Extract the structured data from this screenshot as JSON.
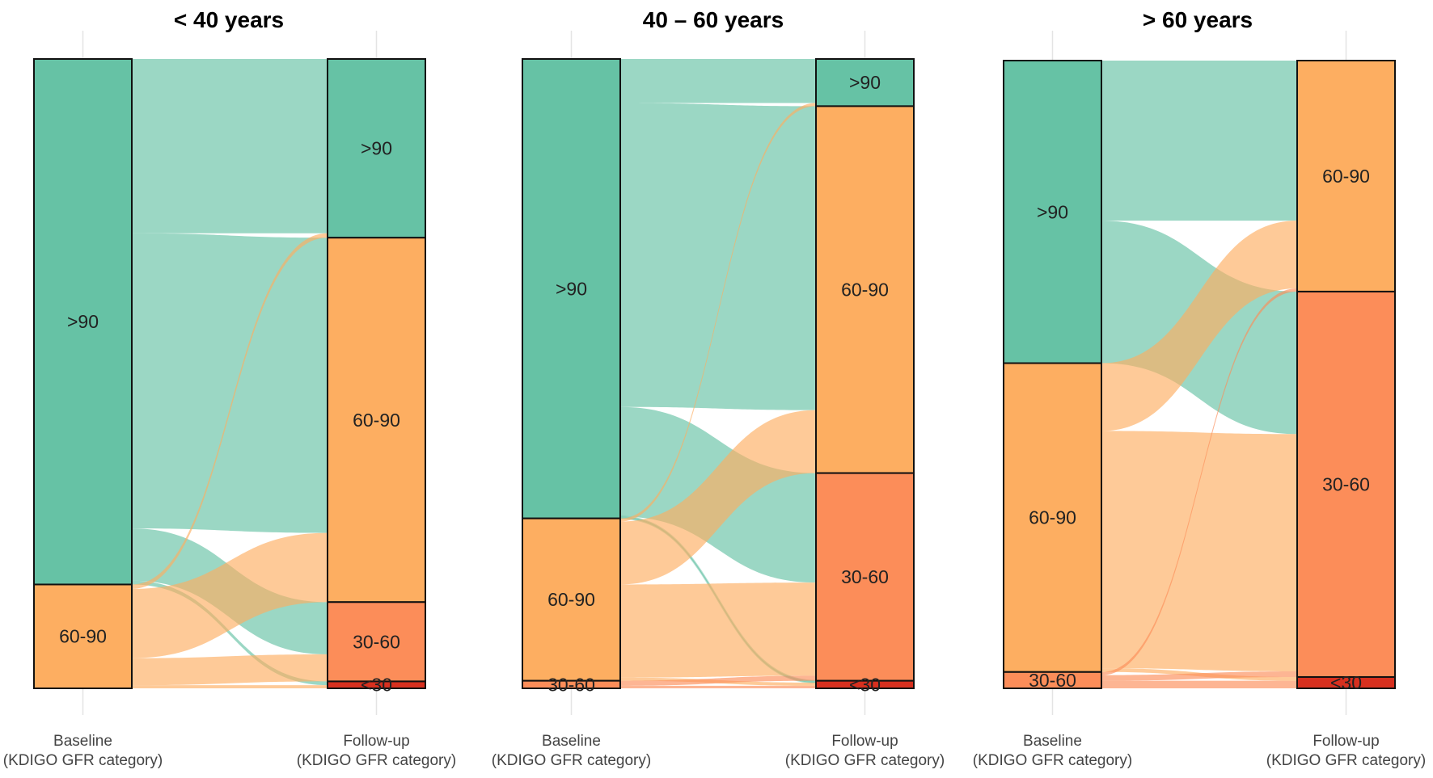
{
  "chart_data": [
    {
      "type": "alluvial",
      "title": "< 40 years",
      "axes": [
        "Baseline",
        "Follow-up"
      ],
      "axis_sublabel": "(KDIGO GFR category)",
      "baseline": [
        {
          "category": ">90",
          "value": 83.5
        },
        {
          "category": "60-90",
          "value": 16.5
        }
      ],
      "followup": [
        {
          "category": ">90",
          "value": 28.4
        },
        {
          "category": "60-90",
          "value": 57.9
        },
        {
          "category": "30-60",
          "value": 12.6
        },
        {
          "category": "<30",
          "value": 1.1
        }
      ],
      "flows": [
        {
          "from": ">90",
          "to": ">90",
          "value": 27.7
        },
        {
          "from": ">90",
          "to": "60-90",
          "value": 46.9
        },
        {
          "from": ">90",
          "to": "30-60",
          "value": 8.3
        },
        {
          "from": ">90",
          "to": "<30",
          "value": 0.6
        },
        {
          "from": "60-90",
          "to": ">90",
          "value": 0.7
        },
        {
          "from": "60-90",
          "to": "60-90",
          "value": 11.0
        },
        {
          "from": "60-90",
          "to": "30-60",
          "value": 4.3
        },
        {
          "from": "60-90",
          "to": "<30",
          "value": 0.5
        }
      ]
    },
    {
      "type": "alluvial",
      "title": "40 – 60 years",
      "axes": [
        "Baseline",
        "Follow-up"
      ],
      "axis_sublabel": "(KDIGO GFR category)",
      "baseline": [
        {
          "category": ">90",
          "value": 73.0
        },
        {
          "category": "60-90",
          "value": 25.8
        },
        {
          "category": "30-60",
          "value": 1.2
        }
      ],
      "followup": [
        {
          "category": ">90",
          "value": 7.5
        },
        {
          "category": "60-90",
          "value": 58.3
        },
        {
          "category": "30-60",
          "value": 33.0
        },
        {
          "category": "<30",
          "value": 1.2
        }
      ],
      "flows": [
        {
          "from": ">90",
          "to": ">90",
          "value": 7.0
        },
        {
          "from": ">90",
          "to": "60-90",
          "value": 48.3
        },
        {
          "from": ">90",
          "to": "30-60",
          "value": 17.4
        },
        {
          "from": ">90",
          "to": "<30",
          "value": 0.3
        },
        {
          "from": "60-90",
          "to": ">90",
          "value": 0.5
        },
        {
          "from": "60-90",
          "to": "60-90",
          "value": 10.0
        },
        {
          "from": "60-90",
          "to": "30-60",
          "value": 14.8
        },
        {
          "from": "60-90",
          "to": "<30",
          "value": 0.5
        },
        {
          "from": "30-60",
          "to": "30-60",
          "value": 0.8
        },
        {
          "from": "30-60",
          "to": "<30",
          "value": 0.4
        }
      ]
    },
    {
      "type": "alluvial",
      "title": "> 60 years",
      "axes": [
        "Baseline",
        "Follow-up"
      ],
      "axis_sublabel": "(KDIGO GFR category)",
      "baseline": [
        {
          "category": ">90",
          "value": 48.2
        },
        {
          "category": "60-90",
          "value": 49.2
        },
        {
          "category": "30-60",
          "value": 2.6
        }
      ],
      "followup": [
        {
          "category": "60-90",
          "value": 36.8
        },
        {
          "category": "30-60",
          "value": 61.4
        },
        {
          "category": "<30",
          "value": 1.8
        }
      ],
      "flows": [
        {
          "from": ">90",
          "to": "60-90",
          "value": 25.5
        },
        {
          "from": ">90",
          "to": "30-60",
          "value": 22.7
        },
        {
          "from": "60-90",
          "to": "60-90",
          "value": 10.8
        },
        {
          "from": "60-90",
          "to": "30-60",
          "value": 37.8
        },
        {
          "from": "60-90",
          "to": "<30",
          "value": 0.6
        },
        {
          "from": "30-60",
          "to": "60-90",
          "value": 0.5
        },
        {
          "from": "30-60",
          "to": "30-60",
          "value": 0.9
        },
        {
          "from": "30-60",
          "to": "<30",
          "value": 1.2
        }
      ]
    }
  ],
  "colors": {
    ">90": "#66c2a5",
    "60-90": "#fdae61",
    "30-60": "#fc8d59",
    "<30": "#d7301f"
  },
  "category_order": [
    ">90",
    "60-90",
    "30-60",
    "<30"
  ]
}
